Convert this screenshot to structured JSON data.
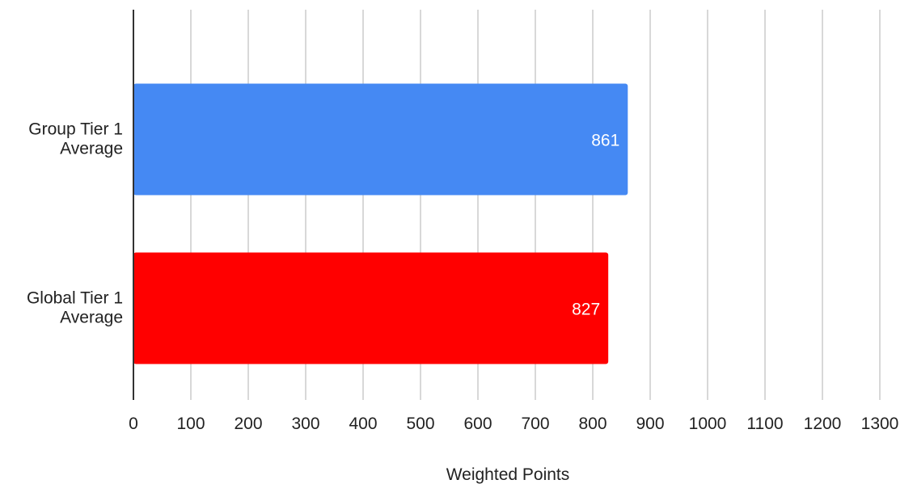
{
  "chart_data": {
    "type": "bar",
    "orientation": "horizontal",
    "title": "",
    "xlabel": "Weighted Points",
    "ylabel": "",
    "categories": [
      [
        "Group Tier 1",
        "Average"
      ],
      [
        "Global Tier 1",
        "Average"
      ]
    ],
    "values": [
      861,
      827
    ],
    "data_labels": [
      "861",
      "827"
    ],
    "bar_colors": [
      "#4589f3",
      "#ff0000"
    ],
    "xlim": [
      0,
      1300
    ],
    "x_ticks": [
      0,
      100,
      200,
      300,
      400,
      500,
      600,
      700,
      800,
      900,
      1000,
      1100,
      1200,
      1300
    ],
    "x_tick_labels": [
      "0",
      "100",
      "200",
      "300",
      "400",
      "500",
      "600",
      "700",
      "800",
      "900",
      "1000",
      "1100",
      "1200",
      "1300"
    ],
    "grid": true,
    "grid_color": "#cccccc",
    "legend": "none"
  }
}
